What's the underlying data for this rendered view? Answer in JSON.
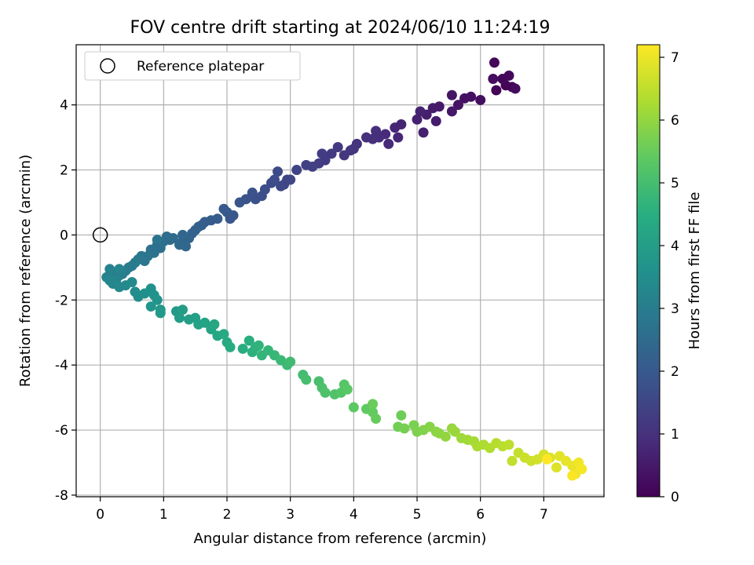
{
  "chart_data": {
    "type": "scatter",
    "title": "FOV centre drift starting at 2024/06/10 11:24:19",
    "xlabel": "Angular distance from reference (arcmin)",
    "ylabel": "Rotation from reference (arcmin)",
    "xlim": [
      -0.38,
      7.95
    ],
    "ylim": [
      -8.05,
      5.85
    ],
    "xticks": [
      0,
      1,
      2,
      3,
      4,
      5,
      6,
      7
    ],
    "yticks": [
      -8,
      -6,
      -4,
      -2,
      0,
      2,
      4
    ],
    "grid": true,
    "legend": {
      "placement": "top-left",
      "entries": [
        "Reference platepar"
      ]
    },
    "reference_point": {
      "x": 0,
      "y": 0,
      "marker": "open-circle"
    },
    "colorbar": {
      "label": "Hours from first FF file",
      "range": [
        0,
        7.2
      ],
      "ticks": [
        0,
        1,
        2,
        3,
        4,
        5,
        6,
        7
      ],
      "colormap": "viridis"
    },
    "outbound_branch": {
      "description_hours": [
        0,
        3.3
      ],
      "points": [
        [
          6.5,
          4.55
        ],
        [
          6.4,
          4.6
        ],
        [
          6.25,
          4.45
        ],
        [
          6.35,
          4.8
        ],
        [
          6.22,
          5.3
        ],
        [
          6.45,
          4.9
        ],
        [
          6.55,
          4.5
        ],
        [
          6.2,
          4.8
        ],
        [
          6.0,
          4.15
        ],
        [
          5.85,
          4.25
        ],
        [
          5.75,
          4.2
        ],
        [
          5.65,
          4.0
        ],
        [
          5.55,
          4.3
        ],
        [
          5.55,
          3.8
        ],
        [
          5.35,
          3.95
        ],
        [
          5.25,
          3.9
        ],
        [
          5.3,
          3.5
        ],
        [
          5.15,
          3.7
        ],
        [
          5.1,
          3.15
        ],
        [
          5.0,
          3.55
        ],
        [
          5.05,
          3.8
        ],
        [
          4.75,
          3.4
        ],
        [
          4.65,
          3.3
        ],
        [
          4.7,
          3.0
        ],
        [
          4.55,
          2.8
        ],
        [
          4.5,
          3.1
        ],
        [
          4.4,
          3.0
        ],
        [
          4.35,
          3.2
        ],
        [
          4.3,
          2.95
        ],
        [
          4.2,
          3.0
        ],
        [
          4.05,
          2.8
        ],
        [
          4.0,
          2.65
        ],
        [
          3.95,
          2.6
        ],
        [
          3.85,
          2.45
        ],
        [
          3.75,
          2.7
        ],
        [
          3.65,
          2.5
        ],
        [
          3.55,
          2.3
        ],
        [
          3.5,
          2.5
        ],
        [
          3.45,
          2.2
        ],
        [
          3.35,
          2.1
        ],
        [
          3.25,
          2.15
        ],
        [
          3.1,
          2.0
        ],
        [
          2.95,
          1.7
        ],
        [
          2.9,
          1.55
        ],
        [
          3.0,
          1.7
        ],
        [
          2.85,
          1.5
        ],
        [
          2.8,
          1.95
        ],
        [
          2.7,
          1.6
        ],
        [
          2.75,
          1.7
        ],
        [
          2.6,
          1.4
        ],
        [
          2.55,
          1.2
        ],
        [
          2.45,
          1.1
        ],
        [
          2.4,
          1.3
        ],
        [
          2.3,
          1.1
        ],
        [
          2.2,
          1.0
        ],
        [
          2.1,
          0.6
        ],
        [
          2.05,
          0.5
        ],
        [
          2.0,
          0.7
        ],
        [
          1.95,
          0.8
        ],
        [
          1.85,
          0.5
        ],
        [
          1.75,
          0.45
        ],
        [
          1.65,
          0.4
        ],
        [
          1.6,
          0.3
        ],
        [
          1.55,
          0.25
        ],
        [
          1.5,
          0.15
        ],
        [
          1.45,
          0.05
        ],
        [
          1.4,
          -0.1
        ],
        [
          1.3,
          -0.2
        ],
        [
          1.3,
          0.0
        ],
        [
          1.35,
          -0.35
        ],
        [
          1.25,
          -0.3
        ],
        [
          1.15,
          -0.1
        ],
        [
          1.1,
          -0.15
        ],
        [
          1.05,
          -0.05
        ],
        [
          1.0,
          -0.2
        ],
        [
          0.95,
          -0.4
        ],
        [
          0.9,
          -0.3
        ],
        [
          0.85,
          -0.55
        ],
        [
          0.8,
          -0.45
        ],
        [
          0.9,
          -0.15
        ],
        [
          0.75,
          -0.65
        ],
        [
          0.7,
          -0.8
        ],
        [
          0.65,
          -0.65
        ],
        [
          0.6,
          -0.75
        ],
        [
          0.55,
          -0.85
        ],
        [
          0.5,
          -0.95
        ],
        [
          0.45,
          -1.0
        ],
        [
          0.4,
          -1.1
        ],
        [
          0.35,
          -1.2
        ],
        [
          0.3,
          -1.25
        ],
        [
          0.2,
          -1.15
        ],
        [
          0.15,
          -1.05
        ],
        [
          0.1,
          -1.3
        ],
        [
          0.3,
          -1.05
        ],
        [
          0.25,
          -1.4
        ],
        [
          0.15,
          -1.4
        ]
      ]
    },
    "return_branch": {
      "description_hours": [
        3.3,
        7.2
      ],
      "points": [
        [
          0.2,
          -1.5
        ],
        [
          0.3,
          -1.6
        ],
        [
          0.4,
          -1.55
        ],
        [
          0.5,
          -1.45
        ],
        [
          0.55,
          -1.75
        ],
        [
          0.6,
          -1.9
        ],
        [
          0.7,
          -1.8
        ],
        [
          0.8,
          -1.65
        ],
        [
          0.85,
          -1.85
        ],
        [
          0.9,
          -2.0
        ],
        [
          0.8,
          -2.2
        ],
        [
          0.95,
          -2.3
        ],
        [
          0.95,
          -2.4
        ],
        [
          1.2,
          -2.35
        ],
        [
          1.25,
          -2.55
        ],
        [
          1.3,
          -2.3
        ],
        [
          1.4,
          -2.6
        ],
        [
          1.5,
          -2.55
        ],
        [
          1.55,
          -2.75
        ],
        [
          1.65,
          -2.7
        ],
        [
          1.75,
          -2.9
        ],
        [
          1.8,
          -2.75
        ],
        [
          1.85,
          -3.1
        ],
        [
          1.95,
          -3.05
        ],
        [
          2.0,
          -3.3
        ],
        [
          2.05,
          -3.45
        ],
        [
          2.25,
          -3.5
        ],
        [
          2.35,
          -3.25
        ],
        [
          2.4,
          -3.6
        ],
        [
          2.45,
          -3.45
        ],
        [
          2.5,
          -3.4
        ],
        [
          2.55,
          -3.7
        ],
        [
          2.65,
          -3.55
        ],
        [
          2.75,
          -3.7
        ],
        [
          2.85,
          -3.85
        ],
        [
          2.95,
          -4.0
        ],
        [
          3.0,
          -3.9
        ],
        [
          3.2,
          -4.3
        ],
        [
          3.25,
          -4.45
        ],
        [
          3.45,
          -4.5
        ],
        [
          3.5,
          -4.7
        ],
        [
          3.55,
          -4.85
        ],
        [
          3.7,
          -4.9
        ],
        [
          3.8,
          -4.85
        ],
        [
          3.85,
          -4.6
        ],
        [
          3.9,
          -4.75
        ],
        [
          4.0,
          -5.3
        ],
        [
          4.2,
          -5.35
        ],
        [
          4.3,
          -5.45
        ],
        [
          4.35,
          -5.65
        ],
        [
          4.3,
          -5.2
        ],
        [
          4.75,
          -5.55
        ],
        [
          4.7,
          -5.9
        ],
        [
          4.8,
          -5.95
        ],
        [
          4.95,
          -5.85
        ],
        [
          5.0,
          -6.05
        ],
        [
          5.1,
          -6.0
        ],
        [
          5.2,
          -5.9
        ],
        [
          5.3,
          -6.05
        ],
        [
          5.35,
          -6.1
        ],
        [
          5.45,
          -6.2
        ],
        [
          5.55,
          -5.95
        ],
        [
          5.6,
          -6.05
        ],
        [
          5.7,
          -6.25
        ],
        [
          5.8,
          -6.3
        ],
        [
          5.9,
          -6.35
        ],
        [
          5.95,
          -6.5
        ],
        [
          6.05,
          -6.45
        ],
        [
          6.15,
          -6.55
        ],
        [
          6.25,
          -6.4
        ],
        [
          6.35,
          -6.5
        ],
        [
          6.45,
          -6.45
        ],
        [
          6.5,
          -6.95
        ],
        [
          6.6,
          -6.7
        ],
        [
          6.7,
          -6.85
        ],
        [
          6.8,
          -6.95
        ],
        [
          6.9,
          -6.9
        ],
        [
          7.0,
          -6.75
        ],
        [
          7.1,
          -6.85
        ],
        [
          7.2,
          -7.15
        ],
        [
          7.25,
          -6.8
        ],
        [
          7.35,
          -6.95
        ],
        [
          7.45,
          -7.1
        ],
        [
          7.5,
          -7.35
        ],
        [
          7.55,
          -7.0
        ],
        [
          7.6,
          -7.2
        ],
        [
          7.45,
          -7.4
        ],
        [
          7.05,
          -6.9
        ]
      ]
    }
  }
}
